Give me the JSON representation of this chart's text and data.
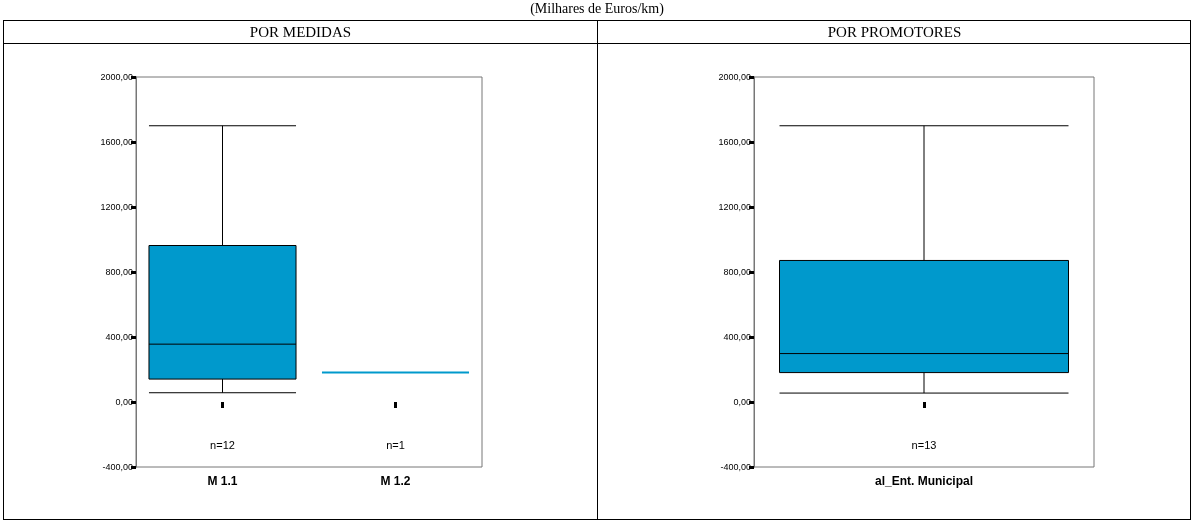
{
  "chart_data": [
    {
      "type": "box",
      "title": "POR MEDIDAS",
      "categories": [
        "M 1.1",
        "M 1.2"
      ],
      "color": "#0099cc",
      "boxes": [
        {
          "low": 57,
          "q1": 141,
          "median": 356,
          "q3": 963,
          "high": 1700
        },
        {
          "low": 182,
          "q1": 182,
          "median": 182,
          "q3": 182,
          "high": 182
        }
      ],
      "ylim": [
        -400,
        2000
      ],
      "yticks": [
        {
          "value": -400,
          "label": "-400,00"
        },
        {
          "value": 0,
          "label": "0,00"
        },
        {
          "value": 400,
          "label": "400,00"
        },
        {
          "value": 800,
          "label": "800,00"
        },
        {
          "value": 1200,
          "label": "1200,00"
        },
        {
          "value": 1600,
          "label": "1600,00"
        },
        {
          "value": 2000,
          "label": "2000,00"
        }
      ],
      "grid": false,
      "annotations": [
        "(Milhares de Euros/km)",
        "n=12",
        "n=1"
      ]
    },
    {
      "type": "box",
      "title": "POR PROMOTORES",
      "categories": [
        "al_Ent. Municipal"
      ],
      "color": "#0099cc",
      "boxes": [
        {
          "low": 55,
          "q1": 181,
          "median": 298,
          "q3": 871,
          "high": 1700
        }
      ],
      "ylim": [
        -400,
        2000
      ],
      "yticks": [
        {
          "value": -400,
          "label": "-400,00"
        },
        {
          "value": 0,
          "label": "0,00"
        },
        {
          "value": 400,
          "label": "400,00"
        },
        {
          "value": 800,
          "label": "800,00"
        },
        {
          "value": 1200,
          "label": "1200,00"
        },
        {
          "value": 1600,
          "label": "1600,00"
        },
        {
          "value": 2000,
          "label": "2000,00"
        }
      ],
      "grid": false,
      "annotations": [
        "n=13"
      ]
    }
  ]
}
